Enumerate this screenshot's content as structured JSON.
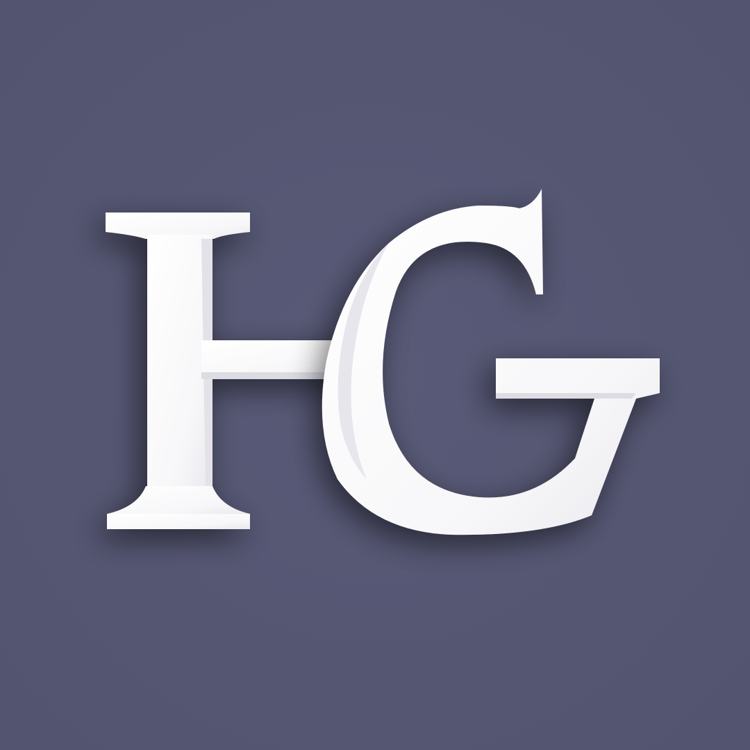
{
  "logo": {
    "monogram": "HG",
    "colors": {
      "background": "#565671",
      "letters": "#ffffff",
      "letter_shade": "#d9d9e0",
      "shadow": "#2a2a44"
    }
  }
}
